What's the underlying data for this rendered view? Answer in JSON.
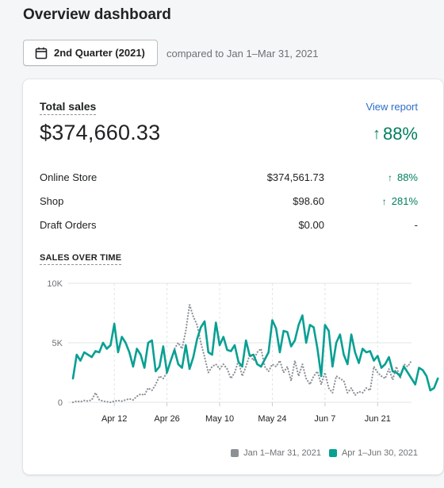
{
  "page": {
    "title": "Overview dashboard",
    "date_button_label": "2nd Quarter (2021)",
    "comparison_text": "compared to Jan 1–Mar 31, 2021",
    "icon": "calendar-icon"
  },
  "card": {
    "title": "Total sales",
    "view_report_label": "View report",
    "total_value": "$374,660.33",
    "total_change": "88%",
    "total_change_icon": "arrow-up-icon",
    "rows": [
      {
        "channel": "Online Store",
        "amount": "$374,561.73",
        "change": "88%",
        "trend": "up"
      },
      {
        "channel": "Shop",
        "amount": "$98.60",
        "change": "281%",
        "trend": "up"
      },
      {
        "channel": "Draft Orders",
        "amount": "$0.00",
        "change": "-",
        "trend": "none"
      }
    ],
    "positive_color": "#007f5f",
    "link_color": "#2c6ecb"
  },
  "chart_label": "SALES OVER TIME",
  "chart_data": {
    "type": "line",
    "title": "",
    "xlabel": "",
    "ylabel": "",
    "y_tick_labels": [
      "10K",
      "5K",
      "0"
    ],
    "ylim": [
      0,
      10000
    ],
    "x_tick_labels": [
      "Apr 12",
      "Apr 26",
      "May 10",
      "May 24",
      "Jun 7",
      "Jun 21"
    ],
    "x_tick_days": [
      11,
      25,
      39,
      53,
      67,
      81
    ],
    "xlim": [
      0,
      90
    ],
    "grid": true,
    "legend_position": "bottom-right",
    "series": [
      {
        "name": "Jan 1–Mar 31, 2021",
        "color": "#8c9196",
        "style": "dotted",
        "values": [
          0,
          100,
          50,
          150,
          100,
          200,
          800,
          200,
          100,
          50,
          0,
          100,
          150,
          100,
          200,
          300,
          200,
          500,
          700,
          600,
          1200,
          1000,
          1500,
          2200,
          2000,
          2500,
          3500,
          4500,
          5000,
          4500,
          6000,
          8200,
          7200,
          6500,
          5000,
          3800,
          2500,
          3000,
          3200,
          2800,
          3200,
          2800,
          2000,
          2500,
          3500,
          2200,
          3000,
          4000,
          3500,
          4200,
          4500,
          3000,
          2600,
          3200,
          3000,
          3500,
          2500,
          3000,
          1800,
          3500,
          2200,
          3200,
          2000,
          1500,
          2200,
          2600,
          1500,
          2500,
          1200,
          800,
          2200,
          2000,
          1800,
          800,
          1200,
          600,
          900,
          800,
          1200,
          1000,
          3000,
          2500,
          2200,
          2000,
          2800,
          1900,
          3000,
          2000,
          3200,
          3000,
          3500
        ]
      },
      {
        "name": "Apr 1–Jun 30, 2021",
        "color": "#08a092",
        "style": "solid",
        "values": [
          2000,
          4000,
          3500,
          4200,
          4000,
          3800,
          4300,
          4200,
          5000,
          4500,
          4800,
          6600,
          4200,
          5500,
          5000,
          4200,
          3000,
          4500,
          4000,
          2900,
          5000,
          5200,
          2600,
          3000,
          4700,
          2500,
          3500,
          4400,
          3200,
          2900,
          4800,
          2800,
          3800,
          5300,
          6300,
          6800,
          4200,
          4000,
          6700,
          4800,
          5500,
          4400,
          4300,
          4800,
          3400,
          3000,
          5200,
          3900,
          4000,
          3200,
          3000,
          3600,
          4200,
          6900,
          6200,
          4200,
          6000,
          5900,
          4700,
          5200,
          6500,
          7300,
          5000,
          6500,
          6300,
          4500,
          2200,
          6500,
          6000,
          3000,
          5000,
          5700,
          4000,
          3200,
          5700,
          4200,
          3300,
          4500,
          4200,
          4300,
          3500,
          3900,
          2900,
          3200,
          3800,
          2600,
          2500,
          2200,
          3000,
          2500,
          2000,
          1500,
          2900,
          2700,
          2200,
          1000,
          1200,
          2000
        ]
      }
    ]
  }
}
